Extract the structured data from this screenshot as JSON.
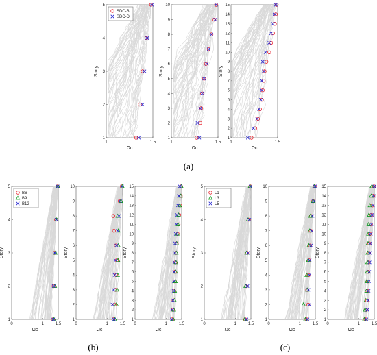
{
  "captions": {
    "a": "(a)",
    "b": "(b)",
    "c": "(c)"
  },
  "chart_data": [
    {
      "type": "scatter",
      "group": "a",
      "xlabel": "Ωc",
      "ylabel": "Story",
      "xlim": [
        1,
        1.5
      ],
      "ylim": [
        1,
        5
      ],
      "xticks": [
        {
          "v": 1,
          "t": "1"
        },
        {
          "v": 1.5,
          "t": "1.5"
        }
      ],
      "yticks": [
        1,
        2,
        3,
        4,
        5
      ],
      "legend": [
        {
          "name": "SDC-B",
          "marker": "circle",
          "color": "#e8202a"
        },
        {
          "name": "SDC-D",
          "marker": "x",
          "color": "#2323cf"
        }
      ],
      "series": [
        {
          "name": "SDC-B",
          "marker": "circle",
          "color": "#e8202a",
          "x": [
            1.32,
            1.36,
            1.39,
            1.43,
            1.48
          ],
          "y": [
            1,
            2,
            3,
            4,
            5
          ]
        },
        {
          "name": "SDC-D",
          "marker": "x",
          "color": "#2323cf",
          "x": [
            1.35,
            1.39,
            1.41,
            1.44,
            1.49
          ],
          "y": [
            1,
            2,
            3,
            4,
            5
          ]
        }
      ]
    },
    {
      "type": "scatter",
      "group": "a",
      "xlabel": "Ωc",
      "ylabel": "Story",
      "xlim": [
        1,
        1.5
      ],
      "ylim": [
        1,
        10
      ],
      "xticks": [
        {
          "v": 1,
          "t": "1"
        },
        {
          "v": 1.5,
          "t": "1.5"
        }
      ],
      "yticks": [
        1,
        2,
        3,
        4,
        5,
        6,
        7,
        8,
        9,
        10
      ],
      "series": [
        {
          "name": "SDC-B",
          "marker": "circle",
          "color": "#e8202a",
          "x": [
            1.27,
            1.31,
            1.32,
            1.33,
            1.35,
            1.37,
            1.4,
            1.43,
            1.46,
            1.48
          ],
          "y": [
            1,
            2,
            3,
            4,
            5,
            6,
            7,
            8,
            9,
            10
          ]
        },
        {
          "name": "SDC-D",
          "marker": "x",
          "color": "#2323cf",
          "x": [
            1.3,
            1.28,
            1.31,
            1.33,
            1.35,
            1.38,
            1.4,
            1.43,
            1.47,
            1.48
          ],
          "y": [
            1,
            2,
            3,
            4,
            5,
            6,
            7,
            8,
            9,
            10
          ]
        }
      ]
    },
    {
      "type": "scatter",
      "group": "a",
      "xlabel": "Ωc",
      "ylabel": "Story",
      "xlim": [
        1,
        1.5
      ],
      "ylim": [
        1,
        15
      ],
      "xticks": [
        {
          "v": 1,
          "t": "1"
        },
        {
          "v": 1.5,
          "t": "1.5"
        }
      ],
      "yticks": [
        1,
        2,
        3,
        4,
        5,
        6,
        7,
        8,
        9,
        10,
        11,
        12,
        13,
        14,
        15
      ],
      "series": [
        {
          "name": "SDC-B",
          "marker": "circle",
          "color": "#e8202a",
          "x": [
            1.22,
            1.26,
            1.29,
            1.31,
            1.33,
            1.34,
            1.35,
            1.36,
            1.38,
            1.41,
            1.43,
            1.45,
            1.47,
            1.48,
            1.49
          ],
          "y": [
            1,
            2,
            3,
            4,
            5,
            6,
            7,
            8,
            9,
            10,
            11,
            12,
            13,
            14,
            15
          ]
        },
        {
          "name": "SDC-D",
          "marker": "x",
          "color": "#2323cf",
          "x": [
            1.18,
            1.24,
            1.28,
            1.3,
            1.32,
            1.33,
            1.33,
            1.35,
            1.34,
            1.37,
            1.41,
            1.43,
            1.45,
            1.47,
            1.48
          ],
          "y": [
            1,
            2,
            3,
            4,
            5,
            6,
            7,
            8,
            9,
            10,
            11,
            12,
            13,
            14,
            15
          ]
        }
      ]
    },
    {
      "type": "scatter",
      "group": "b",
      "xlabel": "Ωc",
      "ylabel": "Story",
      "xlim": [
        0,
        1.5
      ],
      "ylim": [
        1,
        5
      ],
      "xticks": [
        {
          "v": 0,
          "t": "0"
        },
        {
          "v": 1,
          "t": "1"
        },
        {
          "v": 1.5,
          "t": "1.5"
        }
      ],
      "yticks": [
        1,
        2,
        3,
        4,
        5
      ],
      "legend": [
        {
          "name": "B6",
          "marker": "circle",
          "color": "#e8202a"
        },
        {
          "name": "B9",
          "marker": "triangle",
          "color": "#0c9a1c"
        },
        {
          "name": "B12",
          "marker": "x",
          "color": "#2323cf"
        }
      ],
      "series": [
        {
          "name": "B6",
          "marker": "circle",
          "color": "#e8202a",
          "x": [
            1.33,
            1.35,
            1.38,
            1.43,
            1.48
          ],
          "y": [
            1,
            2,
            3,
            4,
            5
          ]
        },
        {
          "name": "B9",
          "marker": "triangle",
          "color": "#0c9a1c",
          "x": [
            1.36,
            1.39,
            1.41,
            1.45,
            1.49
          ],
          "y": [
            1,
            2,
            3,
            4,
            5
          ]
        },
        {
          "name": "B12",
          "marker": "x",
          "color": "#2323cf",
          "x": [
            1.34,
            1.35,
            1.39,
            1.44,
            1.48
          ],
          "y": [
            1,
            2,
            3,
            4,
            5
          ]
        }
      ]
    },
    {
      "type": "scatter",
      "group": "b",
      "xlabel": "Ωc",
      "ylabel": "Story",
      "xlim": [
        0,
        1.5
      ],
      "ylim": [
        1,
        10
      ],
      "xticks": [
        {
          "v": 0,
          "t": "0"
        },
        {
          "v": 1,
          "t": "1"
        },
        {
          "v": 1.5,
          "t": "1.5"
        }
      ],
      "yticks": [
        1,
        2,
        3,
        4,
        5,
        6,
        7,
        8,
        9,
        10
      ],
      "series": [
        {
          "name": "B6",
          "marker": "circle",
          "color": "#e8202a",
          "x": [
            1.2,
            1.24,
            1.27,
            1.29,
            1.31,
            1.28,
            1.22,
            1.2,
            1.4,
            1.47
          ],
          "y": [
            1,
            2,
            3,
            4,
            5,
            6,
            7,
            8,
            9,
            10
          ]
        },
        {
          "name": "B9",
          "marker": "triangle",
          "color": "#0c9a1c",
          "x": [
            1.25,
            1.3,
            1.32,
            1.34,
            1.35,
            1.36,
            1.36,
            1.34,
            1.44,
            1.49
          ],
          "y": [
            1,
            2,
            3,
            4,
            5,
            6,
            7,
            8,
            9,
            10
          ]
        },
        {
          "name": "B12",
          "marker": "x",
          "color": "#2323cf",
          "x": [
            1.22,
            1.17,
            1.21,
            1.24,
            1.27,
            1.3,
            1.34,
            1.38,
            1.42,
            1.48
          ],
          "y": [
            1,
            2,
            3,
            4,
            5,
            6,
            7,
            8,
            9,
            10
          ]
        }
      ]
    },
    {
      "type": "scatter",
      "group": "b",
      "xlabel": "Ωc",
      "ylabel": "Story",
      "xlim": [
        0,
        1.5
      ],
      "ylim": [
        1,
        15
      ],
      "xticks": [
        {
          "v": 0,
          "t": "0"
        },
        {
          "v": 1,
          "t": "1"
        },
        {
          "v": 1.5,
          "t": "1.5"
        }
      ],
      "yticks": [
        1,
        2,
        3,
        4,
        5,
        6,
        7,
        8,
        9,
        10,
        11,
        12,
        13,
        14,
        15
      ],
      "series": [
        {
          "name": "B6",
          "marker": "circle",
          "color": "#e8202a",
          "x": [
            1.2,
            1.22,
            1.24,
            1.26,
            1.28,
            1.29,
            1.3,
            1.32,
            1.34,
            1.37,
            1.4,
            1.42,
            1.45,
            1.47,
            1.48
          ],
          "y": [
            1,
            2,
            3,
            4,
            5,
            6,
            7,
            8,
            9,
            10,
            11,
            12,
            13,
            14,
            15
          ]
        },
        {
          "name": "B9",
          "marker": "triangle",
          "color": "#0c9a1c",
          "x": [
            1.23,
            1.25,
            1.27,
            1.28,
            1.3,
            1.31,
            1.32,
            1.33,
            1.34,
            1.36,
            1.38,
            1.4,
            1.44,
            1.47,
            1.49
          ],
          "y": [
            1,
            2,
            3,
            4,
            5,
            6,
            7,
            8,
            9,
            10,
            11,
            12,
            13,
            14,
            15
          ]
        },
        {
          "name": "B12",
          "marker": "x",
          "color": "#2323cf",
          "x": [
            1.18,
            1.2,
            1.22,
            1.24,
            1.25,
            1.26,
            1.27,
            1.28,
            1.29,
            1.31,
            1.33,
            1.35,
            1.38,
            1.41,
            1.44
          ],
          "y": [
            1,
            2,
            3,
            4,
            5,
            6,
            7,
            8,
            9,
            10,
            11,
            12,
            13,
            14,
            15
          ]
        }
      ]
    },
    {
      "type": "scatter",
      "group": "c",
      "xlabel": "Ωc",
      "ylabel": "Story",
      "xlim": [
        0,
        1.5
      ],
      "ylim": [
        1,
        5
      ],
      "xticks": [
        {
          "v": 0,
          "t": "0"
        },
        {
          "v": 1,
          "t": "1"
        },
        {
          "v": 1.5,
          "t": "1.5"
        }
      ],
      "yticks": [
        1,
        2,
        3,
        4,
        5
      ],
      "legend": [
        {
          "name": "L1",
          "marker": "circle",
          "color": "#e8202a"
        },
        {
          "name": "L3",
          "marker": "triangle",
          "color": "#0c9a1c"
        },
        {
          "name": "L5",
          "marker": "x",
          "color": "#2323cf"
        }
      ],
      "series": [
        {
          "name": "L1",
          "marker": "circle",
          "color": "#e8202a",
          "x": [
            1.32,
            1.35,
            1.38,
            1.43,
            1.48
          ],
          "y": [
            1,
            2,
            3,
            4,
            5
          ]
        },
        {
          "name": "L3",
          "marker": "triangle",
          "color": "#0c9a1c",
          "x": [
            1.3,
            1.33,
            1.36,
            1.41,
            1.47
          ],
          "y": [
            1,
            2,
            3,
            4,
            5
          ]
        },
        {
          "name": "L5",
          "marker": "x",
          "color": "#2323cf",
          "x": [
            1.36,
            1.39,
            1.4,
            1.45,
            1.49
          ],
          "y": [
            1,
            2,
            3,
            4,
            5
          ]
        }
      ]
    },
    {
      "type": "scatter",
      "group": "c",
      "xlabel": "Ωc",
      "ylabel": "Story",
      "xlim": [
        0,
        1.5
      ],
      "ylim": [
        1,
        10
      ],
      "xticks": [
        {
          "v": 0,
          "t": "0"
        },
        {
          "v": 1,
          "t": "1"
        },
        {
          "v": 1.5,
          "t": "1.5"
        }
      ],
      "yticks": [
        1,
        2,
        3,
        4,
        5,
        6,
        7,
        8,
        9,
        10
      ],
      "series": [
        {
          "name": "L1",
          "marker": "circle",
          "color": "#e8202a",
          "x": [
            1.22,
            1.27,
            1.24,
            1.28,
            1.3,
            1.33,
            1.35,
            1.36,
            1.43,
            1.48
          ],
          "y": [
            1,
            2,
            3,
            4,
            5,
            6,
            7,
            8,
            9,
            10
          ]
        },
        {
          "name": "L3",
          "marker": "triangle",
          "color": "#0c9a1c",
          "x": [
            1.18,
            1.12,
            1.24,
            1.22,
            1.27,
            1.29,
            1.32,
            1.34,
            1.43,
            1.47
          ],
          "y": [
            1,
            2,
            3,
            4,
            5,
            6,
            7,
            8,
            9,
            10
          ]
        },
        {
          "name": "L5",
          "marker": "x",
          "color": "#2323cf",
          "x": [
            1.25,
            1.31,
            1.28,
            1.31,
            1.32,
            1.36,
            1.38,
            1.41,
            1.44,
            1.49
          ],
          "y": [
            1,
            2,
            3,
            4,
            5,
            6,
            7,
            8,
            9,
            10
          ]
        }
      ]
    },
    {
      "type": "scatter",
      "group": "c",
      "xlabel": "Ωc",
      "ylabel": "Story",
      "xlim": [
        0,
        1.5
      ],
      "ylim": [
        1,
        15
      ],
      "xticks": [
        {
          "v": 0,
          "t": "0"
        },
        {
          "v": 1,
          "t": "1"
        },
        {
          "v": 1.5,
          "t": "1.5"
        }
      ],
      "yticks": [
        1,
        2,
        3,
        4,
        5,
        6,
        7,
        8,
        9,
        10,
        11,
        12,
        13,
        14,
        15
      ],
      "series": [
        {
          "name": "L1",
          "marker": "circle",
          "color": "#e8202a",
          "x": [
            1.22,
            1.24,
            1.27,
            1.28,
            1.3,
            1.31,
            1.32,
            1.33,
            1.34,
            1.36,
            1.39,
            1.41,
            1.44,
            1.47,
            1.49
          ],
          "y": [
            1,
            2,
            3,
            4,
            5,
            6,
            7,
            8,
            9,
            10,
            11,
            12,
            13,
            14,
            15
          ]
        },
        {
          "name": "L3",
          "marker": "triangle",
          "color": "#0c9a1c",
          "x": [
            1.18,
            1.2,
            1.23,
            1.25,
            1.26,
            1.27,
            1.28,
            1.29,
            1.3,
            1.31,
            1.32,
            1.33,
            1.36,
            1.4,
            1.42
          ],
          "y": [
            1,
            2,
            3,
            4,
            5,
            6,
            7,
            8,
            9,
            10,
            11,
            12,
            13,
            14,
            15
          ]
        },
        {
          "name": "L5",
          "marker": "x",
          "color": "#2323cf",
          "x": [
            1.25,
            1.28,
            1.31,
            1.32,
            1.33,
            1.34,
            1.35,
            1.36,
            1.37,
            1.39,
            1.41,
            1.43,
            1.46,
            1.48,
            1.5
          ],
          "y": [
            1,
            2,
            3,
            4,
            5,
            6,
            7,
            8,
            9,
            10,
            11,
            12,
            13,
            14,
            15
          ]
        }
      ]
    }
  ]
}
